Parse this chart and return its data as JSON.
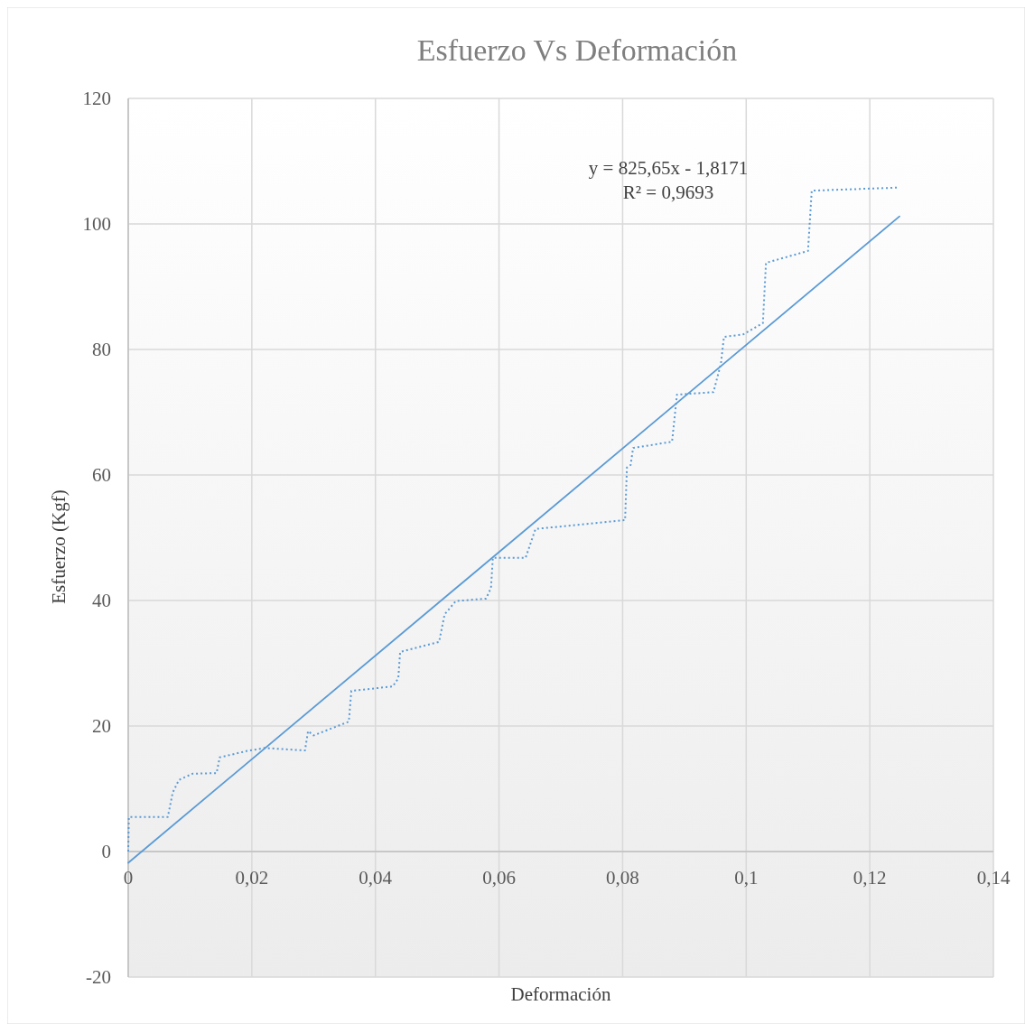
{
  "chart_data": {
    "type": "line",
    "title": "Esfuerzo Vs Deformación",
    "xlabel": "Deformación",
    "ylabel": "Esfuerzo (Kgf)",
    "xlim": [
      0,
      0.14
    ],
    "ylim": [
      -20,
      120
    ],
    "xticks": [
      0,
      {
        "value": 0.02,
        "label": "0,02"
      },
      {
        "value": 0.04,
        "label": "0,04"
      },
      {
        "value": 0.06,
        "label": "0,06"
      },
      {
        "value": 0.08,
        "label": "0,08"
      },
      {
        "value": 0.1,
        "label": "0,1"
      },
      {
        "value": 0.12,
        "label": "0,12"
      },
      {
        "value": 0.14,
        "label": "0,14"
      }
    ],
    "yticks": [
      -20,
      0,
      20,
      40,
      60,
      80,
      100,
      120
    ],
    "grid": true,
    "marker": "none",
    "annotations": [
      "y = 825,65x - 1,8171",
      "R² = 0,9693"
    ],
    "series": [
      {
        "color": "#5b9bd5",
        "line_style": "dotted",
        "x": [
          0,
          0.0001,
          0.0064,
          0.0072,
          0.0082,
          0.0104,
          0.0143,
          0.0148,
          0.0191,
          0.0221,
          0.0286,
          0.0291,
          0.03,
          0.0357,
          0.0361,
          0.0428,
          0.0437,
          0.044,
          0.0503,
          0.0512,
          0.053,
          0.0579,
          0.0587,
          0.059,
          0.0643,
          0.0659,
          0.0804,
          0.0807,
          0.0813,
          0.0817,
          0.088,
          0.0888,
          0.0947,
          0.0959,
          0.0964,
          0.0995,
          0.1027,
          0.1032,
          0.11,
          0.1106,
          0.1248
        ],
        "values": [
          0,
          5.5,
          5.5,
          9.4,
          11.4,
          12.4,
          12.5,
          15,
          16,
          16.5,
          16.1,
          19.2,
          18.5,
          20.7,
          25.6,
          26.3,
          27.6,
          31.8,
          33.4,
          37.8,
          39.9,
          40.3,
          42,
          46.8,
          46.8,
          51.4,
          52.8,
          61.2,
          61.6,
          64.3,
          65.3,
          72.8,
          73.2,
          77.7,
          82,
          82.4,
          84.2,
          93.8,
          95.7,
          105.3,
          105.8
        ]
      },
      {
        "color": "#5b9bd5",
        "line_style": "solid",
        "x": [
          0,
          0.1248
        ],
        "values": [
          -1.8,
          101.2
        ]
      }
    ]
  }
}
